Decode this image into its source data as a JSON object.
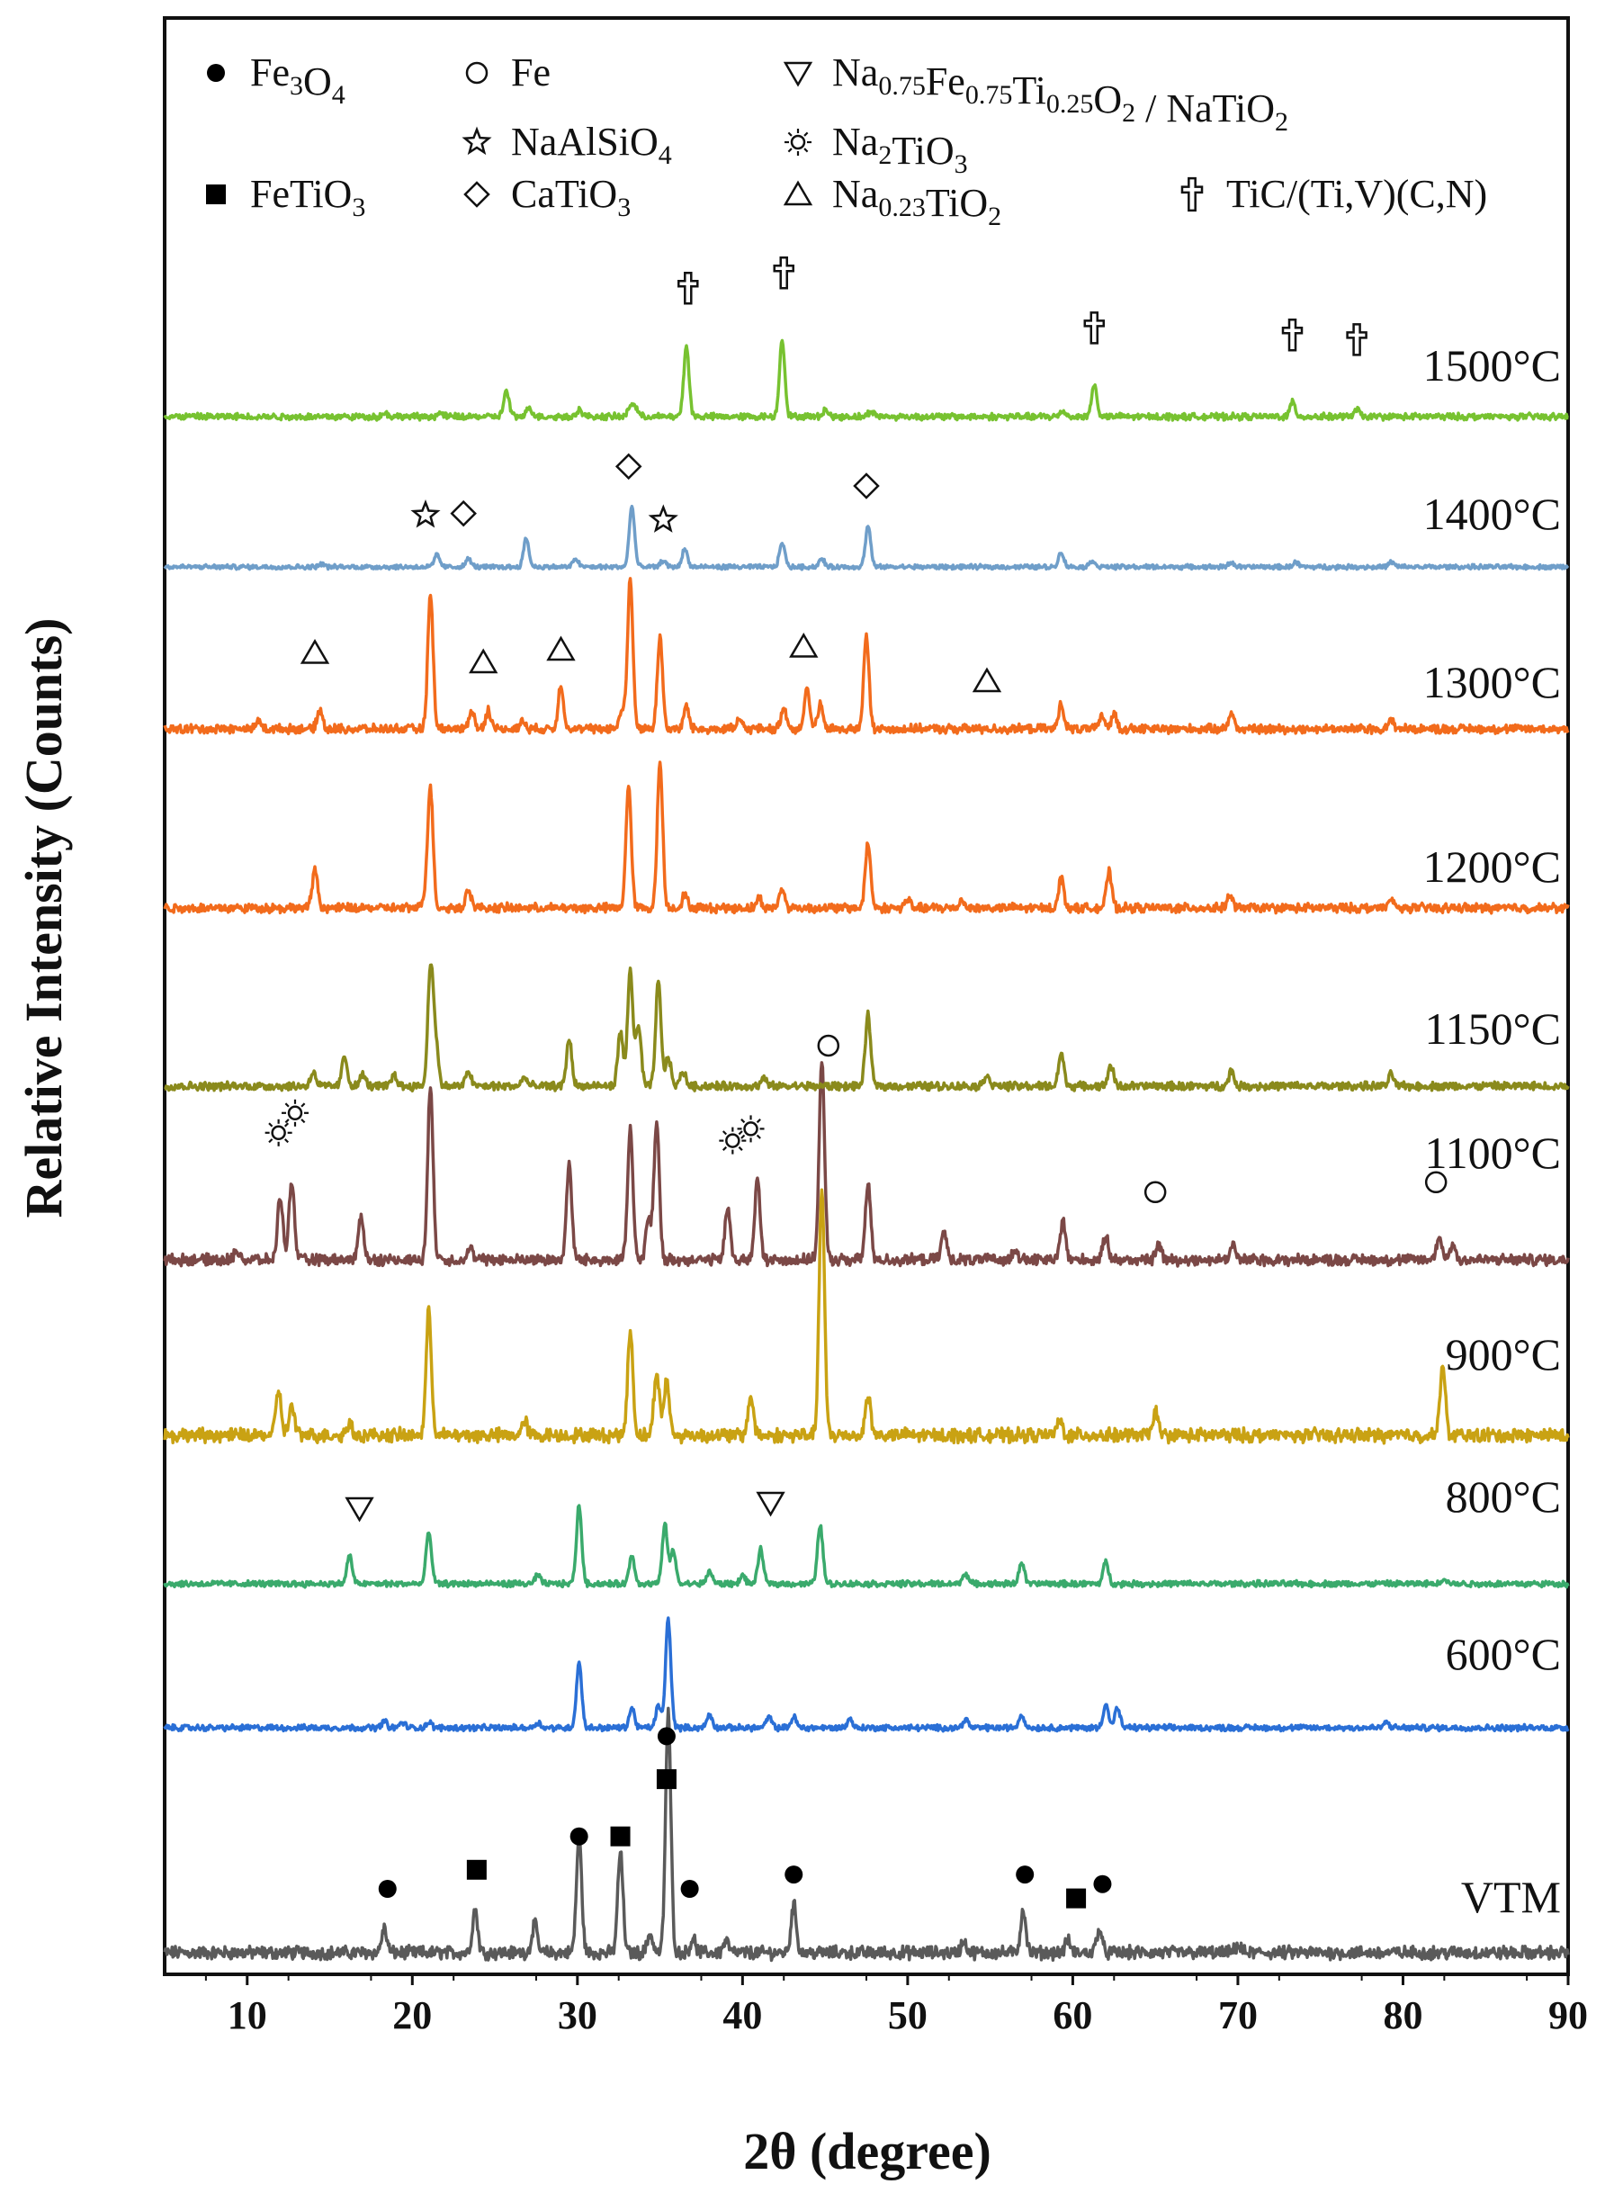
{
  "chart_data": {
    "type": "line",
    "title": "",
    "xlabel": "2θ (degree)",
    "ylabel": "Relative Intensity (Counts)",
    "xlim": [
      5,
      90
    ],
    "xticks": [
      10,
      20,
      30,
      40,
      50,
      60,
      70,
      80,
      90
    ],
    "yticks": "none",
    "colors": {
      "VTM": "#5a5a5a",
      "600": "#2a6fd6",
      "800": "#3aaa6c",
      "900": "#c9a213",
      "1100": "#7b4846",
      "1150": "#8a8a1c",
      "1200": "#f26b1c",
      "1300": "#f26b1c",
      "1400": "#6f9ec9",
      "1500": "#77c230"
    },
    "series": [
      {
        "key": "VTM",
        "name": "VTM",
        "color": "#5a5a5a",
        "peaks": [
          [
            18.3,
            0.1
          ],
          [
            23.8,
            0.18
          ],
          [
            27.4,
            0.12
          ],
          [
            30.1,
            0.48
          ],
          [
            32.6,
            0.42
          ],
          [
            34.4,
            0.08
          ],
          [
            35.5,
            1.0
          ],
          [
            37.0,
            0.06
          ],
          [
            39.0,
            0.05
          ],
          [
            43.1,
            0.2
          ],
          [
            53.4,
            0.05
          ],
          [
            57.0,
            0.18
          ],
          [
            59.7,
            0.05
          ],
          [
            61.6,
            0.1
          ],
          [
            70.0,
            0.03
          ]
        ],
        "markers": [
          [
            18.5,
            "Fe3O4",
            0.2
          ],
          [
            23.9,
            "FeTiO3",
            0.28
          ],
          [
            30.1,
            "Fe3O4",
            0.42
          ],
          [
            32.6,
            "FeTiO3",
            0.42
          ],
          [
            35.4,
            "FeTiO3",
            0.66
          ],
          [
            35.4,
            "Fe3O4",
            0.84
          ],
          [
            36.8,
            "Fe3O4",
            0.2
          ],
          [
            43.1,
            "Fe3O4",
            0.26
          ],
          [
            57.1,
            "Fe3O4",
            0.26
          ],
          [
            60.2,
            "FeTiO3",
            0.16
          ],
          [
            61.8,
            "Fe3O4",
            0.22
          ]
        ]
      },
      {
        "key": "600",
        "name": "600°C",
        "color": "#2a6fd6",
        "peaks": [
          [
            18.3,
            0.06
          ],
          [
            19.4,
            0.05
          ],
          [
            21.0,
            0.05
          ],
          [
            27.6,
            0.05
          ],
          [
            30.1,
            0.6
          ],
          [
            33.3,
            0.18
          ],
          [
            34.9,
            0.2
          ],
          [
            35.5,
            1.0
          ],
          [
            38.0,
            0.12
          ],
          [
            41.6,
            0.1
          ],
          [
            43.1,
            0.1
          ],
          [
            46.5,
            0.08
          ],
          [
            53.5,
            0.08
          ],
          [
            56.9,
            0.12
          ],
          [
            62.0,
            0.22
          ],
          [
            62.7,
            0.18
          ],
          [
            79.0,
            0.05
          ]
        ],
        "markers": []
      },
      {
        "key": "800",
        "name": "800°C",
        "color": "#3aaa6c",
        "peaks": [
          [
            16.2,
            0.26
          ],
          [
            21.0,
            0.48
          ],
          [
            27.6,
            0.08
          ],
          [
            30.1,
            0.72
          ],
          [
            33.3,
            0.26
          ],
          [
            35.3,
            0.54
          ],
          [
            35.8,
            0.3
          ],
          [
            38.0,
            0.12
          ],
          [
            40.0,
            0.08
          ],
          [
            41.1,
            0.32
          ],
          [
            44.7,
            0.55
          ],
          [
            53.5,
            0.1
          ],
          [
            56.9,
            0.2
          ],
          [
            62.0,
            0.2
          ],
          [
            82.5,
            0.05
          ]
        ],
        "markers": [
          [
            16.8,
            "NaFeTiO2",
            0.55
          ],
          [
            41.7,
            "NaFeTiO2",
            0.6
          ]
        ]
      },
      {
        "key": "900",
        "name": "900°C",
        "color": "#c9a213",
        "peaks": [
          [
            11.9,
            0.18
          ],
          [
            12.7,
            0.12
          ],
          [
            16.2,
            0.05
          ],
          [
            21.0,
            0.5
          ],
          [
            26.8,
            0.06
          ],
          [
            33.2,
            0.42
          ],
          [
            34.8,
            0.26
          ],
          [
            35.4,
            0.22
          ],
          [
            40.5,
            0.16
          ],
          [
            44.8,
            1.0
          ],
          [
            47.6,
            0.16
          ],
          [
            59.2,
            0.06
          ],
          [
            65.0,
            0.1
          ],
          [
            82.4,
            0.28
          ]
        ],
        "markers": []
      },
      {
        "key": "1100",
        "name": "1100°C",
        "color": "#7b4846",
        "peaks": [
          [
            9.4,
            0.05
          ],
          [
            12.0,
            0.32
          ],
          [
            12.7,
            0.4
          ],
          [
            16.9,
            0.22
          ],
          [
            21.1,
            0.88
          ],
          [
            23.5,
            0.06
          ],
          [
            29.5,
            0.48
          ],
          [
            33.2,
            0.66
          ],
          [
            34.3,
            0.2
          ],
          [
            34.8,
            0.7
          ],
          [
            39.1,
            0.26
          ],
          [
            40.9,
            0.4
          ],
          [
            44.8,
            1.0
          ],
          [
            47.6,
            0.38
          ],
          [
            52.2,
            0.14
          ],
          [
            56.5,
            0.06
          ],
          [
            59.4,
            0.2
          ],
          [
            62.0,
            0.12
          ],
          [
            65.2,
            0.08
          ],
          [
            69.7,
            0.08
          ],
          [
            82.2,
            0.12
          ],
          [
            83.0,
            0.08
          ]
        ],
        "markers": [
          [
            11.9,
            "Na2TiO3",
            0.56
          ],
          [
            12.9,
            "Na2TiO3",
            0.66
          ],
          [
            39.4,
            "Na2TiO3",
            0.52
          ],
          [
            40.5,
            "Na2TiO3",
            0.58
          ],
          [
            45.2,
            "Fe",
            1.0
          ],
          [
            65.0,
            "Fe",
            0.26
          ],
          [
            82.0,
            "Fe",
            0.31
          ]
        ]
      },
      {
        "key": "1150",
        "name": "1150°C",
        "color": "#8a8a1c",
        "peaks": [
          [
            14.0,
            0.1
          ],
          [
            15.9,
            0.2
          ],
          [
            17.0,
            0.08
          ],
          [
            18.9,
            0.08
          ],
          [
            21.1,
            0.78
          ],
          [
            21.4,
            0.3
          ],
          [
            23.4,
            0.1
          ],
          [
            26.8,
            0.06
          ],
          [
            29.5,
            0.32
          ],
          [
            32.6,
            0.36
          ],
          [
            33.2,
            0.78
          ],
          [
            33.7,
            0.4
          ],
          [
            34.9,
            0.7
          ],
          [
            35.5,
            0.2
          ],
          [
            36.4,
            0.1
          ],
          [
            41.3,
            0.05
          ],
          [
            47.6,
            0.48
          ],
          [
            54.8,
            0.08
          ],
          [
            59.3,
            0.22
          ],
          [
            62.3,
            0.14
          ],
          [
            69.6,
            0.1
          ],
          [
            79.3,
            0.08
          ]
        ],
        "markers": []
      },
      {
        "key": "1200",
        "name": "1200°C",
        "color": "#f26b1c",
        "peaks": [
          [
            14.1,
            0.24
          ],
          [
            20.8,
            0.08
          ],
          [
            21.1,
            0.73
          ],
          [
            23.4,
            0.12
          ],
          [
            33.1,
            0.75
          ],
          [
            35.0,
            0.9
          ],
          [
            36.5,
            0.08
          ],
          [
            41.0,
            0.06
          ],
          [
            42.4,
            0.12
          ],
          [
            47.6,
            0.4
          ],
          [
            50.0,
            0.05
          ],
          [
            53.3,
            0.05
          ],
          [
            59.3,
            0.18
          ],
          [
            62.2,
            0.22
          ],
          [
            69.5,
            0.08
          ],
          [
            79.3,
            0.05
          ]
        ],
        "markers": []
      },
      {
        "key": "1300",
        "name": "1300°C",
        "color": "#f26b1c",
        "peaks": [
          [
            10.7,
            0.05
          ],
          [
            14.4,
            0.12
          ],
          [
            21.1,
            0.85
          ],
          [
            23.6,
            0.12
          ],
          [
            24.6,
            0.12
          ],
          [
            26.7,
            0.05
          ],
          [
            29.0,
            0.28
          ],
          [
            32.7,
            0.12
          ],
          [
            33.2,
            0.95
          ],
          [
            35.0,
            0.58
          ],
          [
            36.6,
            0.14
          ],
          [
            39.8,
            0.06
          ],
          [
            42.5,
            0.14
          ],
          [
            43.9,
            0.25
          ],
          [
            44.7,
            0.15
          ],
          [
            47.5,
            0.58
          ],
          [
            59.3,
            0.16
          ],
          [
            61.8,
            0.08
          ],
          [
            62.5,
            0.1
          ],
          [
            69.6,
            0.1
          ],
          [
            79.3,
            0.06
          ]
        ],
        "markers": [
          [
            14.1,
            "Na023TiO2",
            0.38
          ],
          [
            24.3,
            "Na023TiO2",
            0.32
          ],
          [
            29.0,
            "Na023TiO2",
            0.4
          ],
          [
            43.7,
            "Na023TiO2",
            0.42
          ],
          [
            54.8,
            "Na023TiO2",
            0.2
          ]
        ]
      },
      {
        "key": "1400",
        "name": "1400°C",
        "color": "#6f9ec9",
        "peaks": [
          [
            14.5,
            0.04
          ],
          [
            21.5,
            0.15
          ],
          [
            23.4,
            0.1
          ],
          [
            26.9,
            0.35
          ],
          [
            29.9,
            0.1
          ],
          [
            33.3,
            0.75
          ],
          [
            35.2,
            0.08
          ],
          [
            36.5,
            0.22
          ],
          [
            42.4,
            0.3
          ],
          [
            44.8,
            0.1
          ],
          [
            47.6,
            0.5
          ],
          [
            59.3,
            0.18
          ],
          [
            61.2,
            0.08
          ],
          [
            69.6,
            0.06
          ],
          [
            73.5,
            0.06
          ],
          [
            79.3,
            0.06
          ]
        ],
        "markers": [
          [
            20.8,
            "NaAlSiO4",
            0.44
          ],
          [
            23.1,
            "CaTiO3",
            0.46
          ],
          [
            33.1,
            "CaTiO3",
            1.04
          ],
          [
            35.2,
            "NaAlSiO4",
            0.38
          ],
          [
            47.5,
            "CaTiO3",
            0.8
          ]
        ]
      },
      {
        "key": "1500",
        "name": "1500°C",
        "color": "#77c230",
        "peaks": [
          [
            18.4,
            0.03
          ],
          [
            21.7,
            0.03
          ],
          [
            25.7,
            0.22
          ],
          [
            27.1,
            0.08
          ],
          [
            30.1,
            0.06
          ],
          [
            33.2,
            0.08
          ],
          [
            33.5,
            0.08
          ],
          [
            36.6,
            0.6
          ],
          [
            42.4,
            0.66
          ],
          [
            45.0,
            0.06
          ],
          [
            47.8,
            0.05
          ],
          [
            59.4,
            0.05
          ],
          [
            61.3,
            0.27
          ],
          [
            73.3,
            0.12
          ],
          [
            77.2,
            0.06
          ]
        ],
        "markers": [
          [
            36.7,
            "TiC",
            0.96
          ],
          [
            42.5,
            "TiC",
            1.09
          ],
          [
            61.3,
            "TiC",
            0.62
          ],
          [
            73.3,
            "TiC",
            0.56
          ],
          [
            77.2,
            "TiC",
            0.52
          ]
        ]
      }
    ],
    "legend": [
      {
        "symbol": "Fe3O4",
        "text": "Fe",
        "sub1": "3",
        "mid1": "O",
        "sub2": "4",
        "tail": ""
      },
      {
        "symbol": "Fe",
        "text": "Fe",
        "sub1": "",
        "mid1": "",
        "sub2": "",
        "tail": ""
      },
      {
        "symbol": "NaFeTiO2",
        "text": "Na",
        "sub1": "0.75",
        "mid1": "Fe",
        "sub2": "0.75",
        "tail": "Ti|0.25|O|2| / NaTiO|2"
      },
      {
        "symbol": "NaAlSiO4",
        "text": "NaAlSiO",
        "sub1": "4",
        "mid1": "",
        "sub2": "",
        "tail": ""
      },
      {
        "symbol": "Na2TiO3",
        "text": "Na",
        "sub1": "2",
        "mid1": "TiO",
        "sub2": "3",
        "tail": ""
      },
      {
        "symbol": "FeTiO3",
        "text": "FeTiO",
        "sub1": "3",
        "mid1": "",
        "sub2": "",
        "tail": ""
      },
      {
        "symbol": "CaTiO3",
        "text": "CaTiO",
        "sub1": "3",
        "mid1": "",
        "sub2": "",
        "tail": ""
      },
      {
        "symbol": "Na023TiO2",
        "text": "Na",
        "sub1": "0.23",
        "mid1": "TiO",
        "sub2": "2",
        "tail": ""
      },
      {
        "symbol": "TiC",
        "text": "TiC/(Ti,V)(C,N)",
        "sub1": "",
        "mid1": "",
        "sub2": "",
        "tail": ""
      }
    ]
  }
}
